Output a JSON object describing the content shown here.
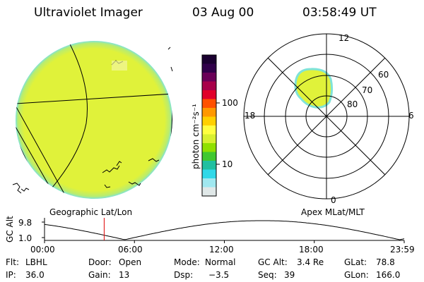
{
  "header": {
    "title": "Ultraviolet Imager",
    "date": "03 Aug 00",
    "time": "03:58:49 UT"
  },
  "colorbar": {
    "unit_label": "photon cm⁻²s⁻¹",
    "ticks": [
      "100",
      "10"
    ],
    "colors": [
      "#1a0030",
      "#30004a",
      "#6a0058",
      "#a8004a",
      "#e0002a",
      "#ff5000",
      "#ff9800",
      "#ffd000",
      "#ffff40",
      "#d8f030",
      "#90e000",
      "#40c830",
      "#20c0a0",
      "#30d8e8",
      "#a0e8f0",
      "#e0e8e8"
    ]
  },
  "globe_view": {
    "caption": "Geographic Lat/Lon",
    "fill_color": "#e0f23a",
    "rim_color": "#7fe3d8"
  },
  "polar_view": {
    "caption": "Apex MLat/MLT",
    "mlt_labels": {
      "top": "12",
      "right": "6",
      "bottom": "0",
      "left": "18"
    },
    "lat_labels": [
      "60",
      "70",
      "80"
    ],
    "oval_color": "#e0f23a"
  },
  "altitude_plot": {
    "ylabel": "GC Alt",
    "yticks": [
      "9.8",
      "1.0"
    ],
    "xticks": [
      "00:00",
      "06:00",
      "12:00",
      "18:00",
      "23:59"
    ],
    "marker_hour": 3.98,
    "marker_color": "#e00000"
  },
  "info": {
    "row1": [
      {
        "label": "Flt:",
        "value": "LBHL"
      },
      {
        "label": "Door:",
        "value": "Open"
      },
      {
        "label": "Mode:",
        "value": "Normal"
      },
      {
        "label": "GC Alt:",
        "value": "3.4 Re"
      },
      {
        "label": "GLat:",
        "value": "78.8"
      }
    ],
    "row2": [
      {
        "label": "IP:",
        "value": "36.0"
      },
      {
        "label": "Gain:",
        "value": "13"
      },
      {
        "label": "Dsp:",
        "value": "−3.5"
      },
      {
        "label": "Seq:",
        "value": "39"
      },
      {
        "label": "GLon:",
        "value": "166.0"
      }
    ]
  }
}
